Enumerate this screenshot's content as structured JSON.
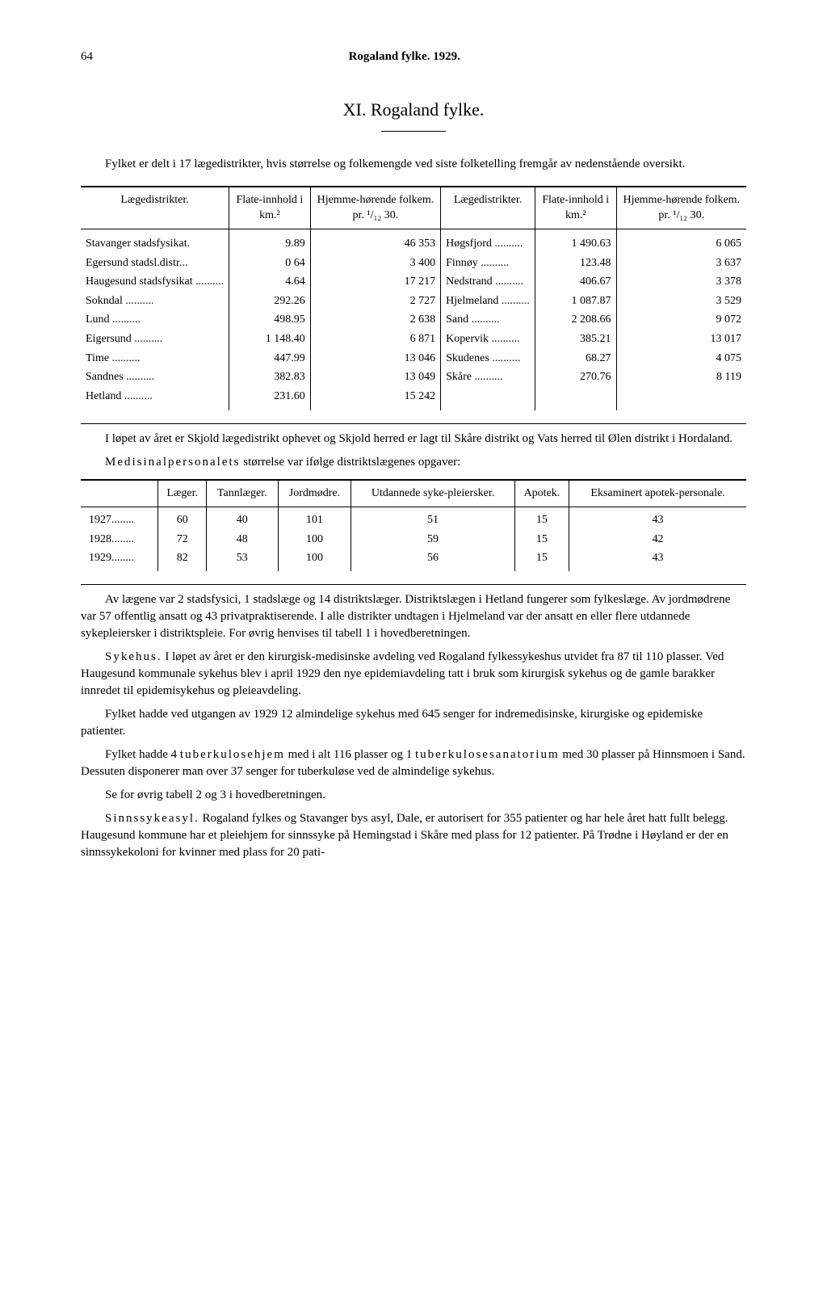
{
  "page_number": "64",
  "running_head": "Rogaland fylke. 1929.",
  "chapter": "XI. Rogaland fylke.",
  "intro": "Fylket er delt i 17 lægedistrikter, hvis størrelse og folkemengde ved siste folketelling fremgår av nedenstående oversikt.",
  "table1": {
    "headers": {
      "district": "Lægedistrikter.",
      "area": "Flate-innhold i km.²",
      "pop": "Hjemme-hørende folkem. pr. ¹/₁₂ 30."
    },
    "left": [
      {
        "name": "Stavanger stadsfysikat.",
        "area": "9.89",
        "pop": "46 353"
      },
      {
        "name": "Egersund stadsl.distr...",
        "area": "0 64",
        "pop": "3 400"
      },
      {
        "name": "Haugesund stadsfysikat",
        "area": "4.64",
        "pop": "17 217"
      },
      {
        "name": "Sokndal",
        "area": "292.26",
        "pop": "2 727"
      },
      {
        "name": "Lund",
        "area": "498.95",
        "pop": "2 638"
      },
      {
        "name": "Eigersund",
        "area": "1 148.40",
        "pop": "6 871"
      },
      {
        "name": "Time",
        "area": "447.99",
        "pop": "13 046"
      },
      {
        "name": "Sandnes",
        "area": "382.83",
        "pop": "13 049"
      },
      {
        "name": "Hetland",
        "area": "231.60",
        "pop": "15 242"
      }
    ],
    "right": [
      {
        "name": "Høgsfjord",
        "area": "1 490.63",
        "pop": "6 065"
      },
      {
        "name": "Finnøy",
        "area": "123.48",
        "pop": "3 637"
      },
      {
        "name": "Nedstrand",
        "area": "406.67",
        "pop": "3 378"
      },
      {
        "name": "Hjelmeland",
        "area": "1 087.87",
        "pop": "3 529"
      },
      {
        "name": "Sand",
        "area": "2 208.66",
        "pop": "9 072"
      },
      {
        "name": "Kopervik",
        "area": "385.21",
        "pop": "13 017"
      },
      {
        "name": "Skudenes",
        "area": "68.27",
        "pop": "4 075"
      },
      {
        "name": "Skåre",
        "area": "270.76",
        "pop": "8 119"
      },
      {
        "name": "",
        "area": "",
        "pop": ""
      }
    ]
  },
  "para_after_t1": "I løpet av året er Skjold lægedistrikt ophevet og Skjold herred er lagt til Skåre distrikt og Vats herred til Ølen distrikt i Hordaland.",
  "medpersonal_intro_pre": "Medisinalpersonalets",
  "medpersonal_intro_post": " størrelse var ifølge distriktslægenes opgaver:",
  "table2": {
    "headers": {
      "empty": "",
      "laeger": "Læger.",
      "tannlaeger": "Tannlæger.",
      "jordmodre": "Jordmødre.",
      "syke": "Utdannede syke-pleiersker.",
      "apotek": "Apotek.",
      "apotekpers": "Eksaminert apotek-personale."
    },
    "rows": [
      {
        "year": "1927........",
        "laeger": "60",
        "tann": "40",
        "jord": "101",
        "syke": "51",
        "apotek": "15",
        "apers": "43"
      },
      {
        "year": "1928........",
        "laeger": "72",
        "tann": "48",
        "jord": "100",
        "syke": "59",
        "apotek": "15",
        "apers": "42"
      },
      {
        "year": "1929........",
        "laeger": "82",
        "tann": "53",
        "jord": "100",
        "syke": "56",
        "apotek": "15",
        "apers": "43"
      }
    ]
  },
  "body": {
    "p1": "Av lægene var 2 stadsfysici, 1 stadslæge og 14 distriktslæger. Distriktslægen i Hetland fungerer som fylkeslæge. Av jordmødrene var 57 offentlig ansatt og 43 privatpraktiserende. I alle distrikter undtagen i Hjelmeland var der ansatt en eller flere utdannede sykepleiersker i distriktspleie. For øvrig henvises til tabell 1 i hovedberetningen.",
    "p2_label": "Sykehus.",
    "p2": " I løpet av året er den kirurgisk-medisinske avdeling ved Rogaland fylkessykeshus utvidet fra 87 til 110 plasser. Ved Haugesund kommunale sykehus blev i april 1929 den nye epidemiavdeling tatt i bruk som kirurgisk sykehus og de gamle barakker innredet til epidemisykehus og pleieavdeling.",
    "p3": "Fylket hadde ved utgangen av 1929 12 almindelige sykehus med 645 senger for indremedisinske, kirurgiske og epidemiske patienter.",
    "p4_pre": "Fylket hadde 4 ",
    "p4_tbhjem": "tuberkulosehjem",
    "p4_mid": " med i alt 116 plasser og 1 ",
    "p4_tbsan": "tuberkulosesanatorium",
    "p4_post": " med 30 plasser på Hinnsmoen i Sand. Dessuten disponerer man over 37 senger for tuberkuløse ved de almindelige sykehus.",
    "p5": "Se for øvrig tabell 2 og 3 i hovedberetningen.",
    "p6_label": "Sinnssykeasyl.",
    "p6": " Rogaland fylkes og Stavanger bys asyl, Dale, er autorisert for 355 patienter og har hele året hatt fullt belegg. Haugesund kommune har et pleiehjem for sinnssyke på Hemingstad i Skåre med plass for 12 patienter. På Trødne i Høyland er der en sinnssykekoloni for kvinner med plass for 20 pati-"
  }
}
